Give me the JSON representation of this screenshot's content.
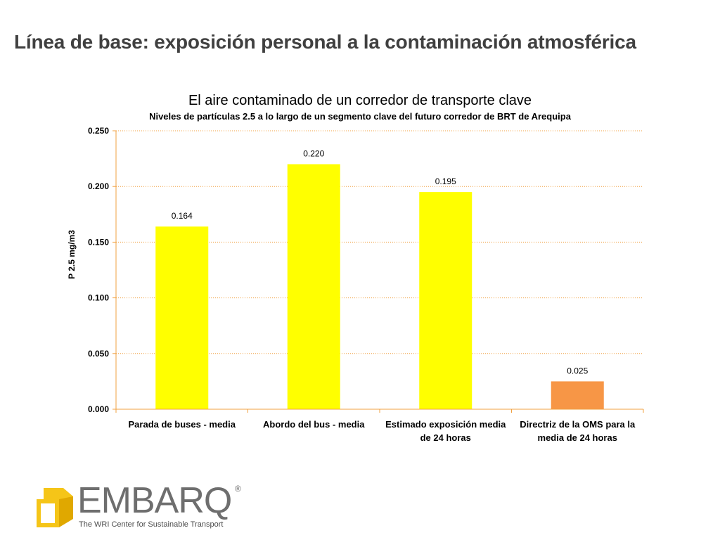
{
  "slide": {
    "title": "Línea de base: exposición personal a la contaminación atmosférica"
  },
  "chart_data": {
    "type": "bar",
    "title": "El aire contaminado de un corredor de transporte clave",
    "subtitle": "Niveles de partículas 2.5 a lo largo de un segmento clave del futuro corredor de BRT de Arequipa",
    "ylabel": "P 2.5 mg/m3",
    "xlabel": "",
    "ylim": [
      0,
      0.25
    ],
    "yticks": [
      "0.000",
      "0.050",
      "0.100",
      "0.150",
      "0.200",
      "0.250"
    ],
    "grid": true,
    "categories": [
      [
        "Parada de buses - media"
      ],
      [
        "Abordo del bus - media"
      ],
      [
        "Estimado exposición media",
        "de 24 horas"
      ],
      [
        "Directriz de la OMS para la",
        "media de 24 horas"
      ]
    ],
    "values": [
      0.164,
      0.22,
      0.195,
      0.025
    ],
    "value_labels": [
      "0.164",
      "0.220",
      "0.195",
      "0.025"
    ],
    "colors": [
      "#ffff00",
      "#ffff00",
      "#ffff00",
      "#f79646"
    ]
  },
  "logo": {
    "name": "EMBARQ",
    "registered": "®",
    "tagline": "The WRI Center for Sustainable Transport"
  }
}
